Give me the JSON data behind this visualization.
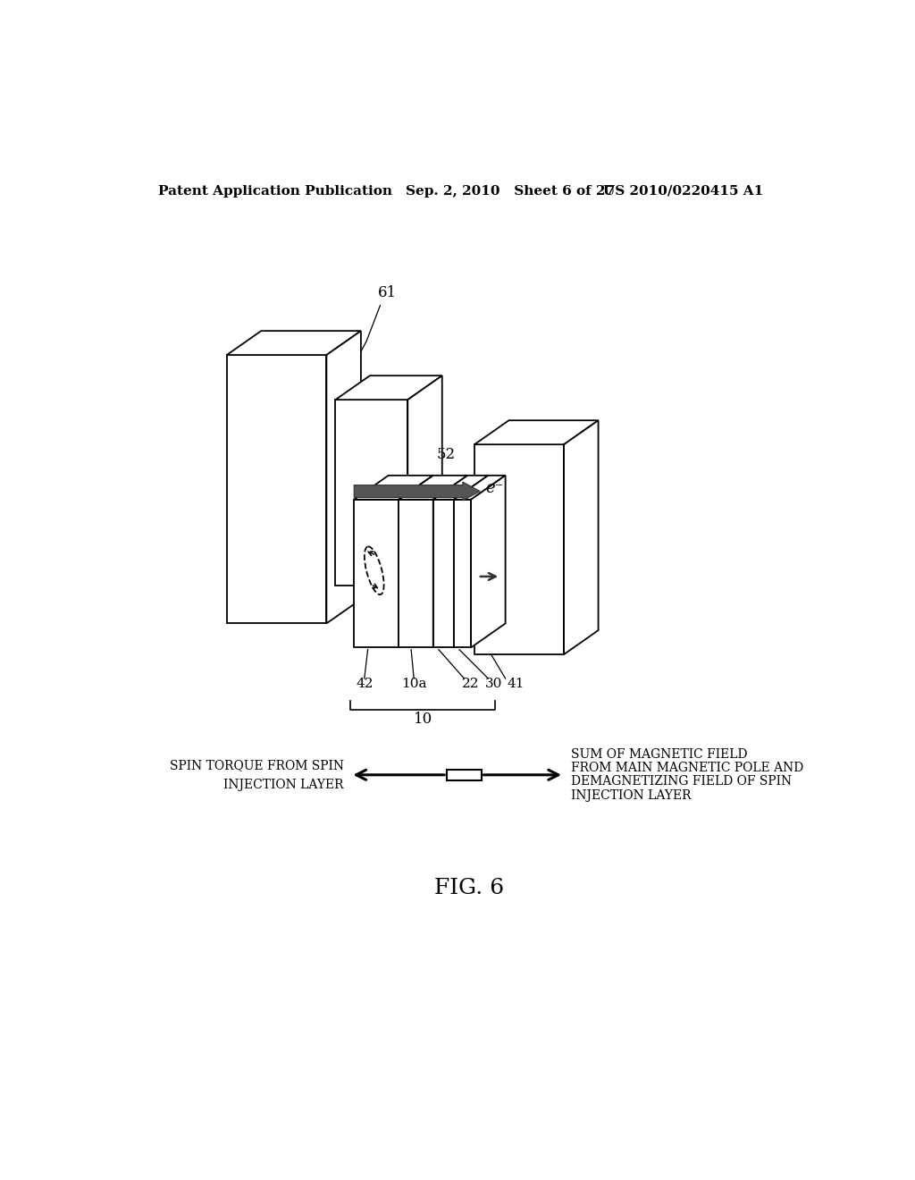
{
  "bg_color": "#ffffff",
  "header_left": "Patent Application Publication",
  "header_mid": "Sep. 2, 2010   Sheet 6 of 27",
  "header_right": "US 2010/0220415 A1",
  "fig_label": "FIG. 6",
  "label_61": "61",
  "label_52": "52",
  "label_42": "42",
  "label_10a": "10a",
  "label_22": "22",
  "label_30": "30",
  "label_41": "41",
  "label_10": "10",
  "label_e": "e⁻",
  "left_text_line1": "SPIN TORQUE FROM SPIN",
  "left_text_line2": "INJECTION LAYER",
  "right_text_line1": "SUM OF MAGNETIC FIELD",
  "right_text_line2": "FROM MAIN MAGNETIC POLE AND",
  "right_text_line3": "DEMAGNETIZING FIELD OF SPIN",
  "right_text_line4": "INJECTION LAYER"
}
